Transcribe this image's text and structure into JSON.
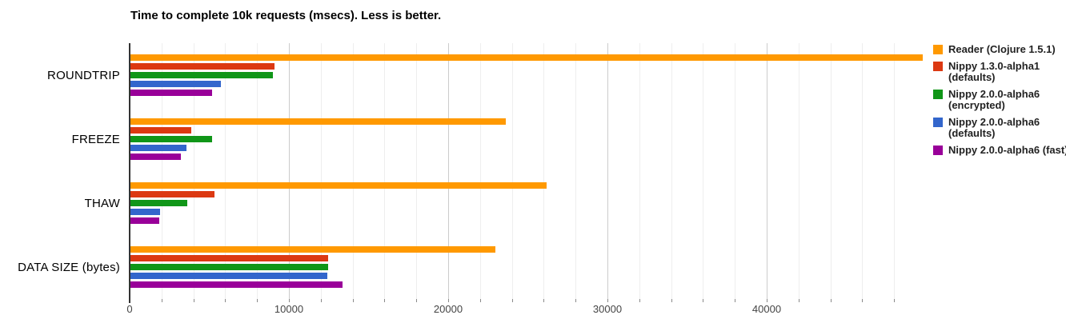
{
  "chart_data": {
    "type": "bar",
    "orientation": "horizontal",
    "title": "Time to complete 10k requests (msecs). Less is better.",
    "categories": [
      "ROUNDTRIP",
      "FREEZE",
      "THAW",
      "DATA SIZE (bytes)"
    ],
    "series": [
      {
        "name": "Reader (Clojure 1.5.1)",
        "color": "#FF9900",
        "values": [
          49750,
          23550,
          26150,
          22900
        ]
      },
      {
        "name": "Nippy 1.3.0-alpha1 (defaults)",
        "color": "#DC3912",
        "values": [
          9030,
          3800,
          5290,
          12400
        ]
      },
      {
        "name": "Nippy 2.0.0-alpha6 (encrypted)",
        "color": "#109618",
        "values": [
          8950,
          5130,
          3580,
          12400
        ]
      },
      {
        "name": "Nippy 2.0.0-alpha6 (defaults)",
        "color": "#3366CC",
        "values": [
          5680,
          3520,
          1880,
          12350
        ]
      },
      {
        "name": "Nippy 2.0.0-alpha6 (fast)",
        "color": "#990099",
        "values": [
          5130,
          3180,
          1820,
          13300
        ]
      }
    ],
    "legend_entries": [
      {
        "lines": [
          "Reader (Clojure 1.5.1)"
        ],
        "color": "#FF9900"
      },
      {
        "lines": [
          "Nippy 1.3.0-alpha1",
          "(defaults)"
        ],
        "color": "#DC3912"
      },
      {
        "lines": [
          "Nippy 2.0.0-alpha6",
          "(encrypted)"
        ],
        "color": "#109618"
      },
      {
        "lines": [
          "Nippy 2.0.0-alpha6",
          "(defaults)"
        ],
        "color": "#3366CC"
      },
      {
        "lines": [
          "Nippy 2.0.0-alpha6 (fast)"
        ],
        "color": "#990099"
      }
    ],
    "x_tick_labels": [
      "0",
      "10000",
      "20000",
      "30000",
      "40000"
    ],
    "x_tick_values": [
      0,
      10000,
      20000,
      30000,
      40000
    ],
    "xlim": [
      0,
      50000
    ],
    "minor_grid_step": 2000,
    "grid_on": true,
    "legend_position": "right",
    "colors": {
      "minor_grid": "#eeeeee",
      "major_grid": "#cccccc",
      "axis_line": "#333333",
      "tick_label": "#444444",
      "legend_text": "#222222"
    }
  }
}
